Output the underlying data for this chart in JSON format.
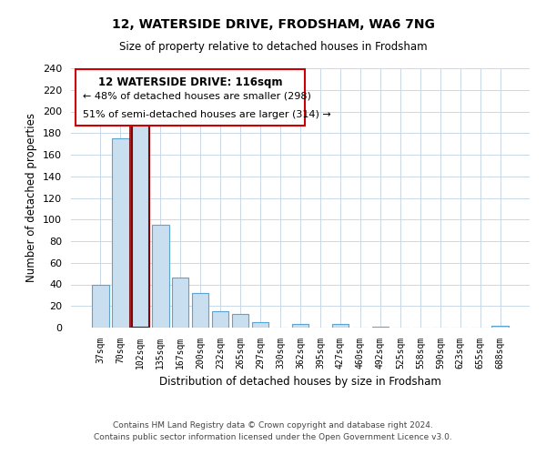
{
  "title": "12, WATERSIDE DRIVE, FRODSHAM, WA6 7NG",
  "subtitle": "Size of property relative to detached houses in Frodsham",
  "xlabel": "Distribution of detached houses by size in Frodsham",
  "ylabel": "Number of detached properties",
  "bin_labels": [
    "37sqm",
    "70sqm",
    "102sqm",
    "135sqm",
    "167sqm",
    "200sqm",
    "232sqm",
    "265sqm",
    "297sqm",
    "330sqm",
    "362sqm",
    "395sqm",
    "427sqm",
    "460sqm",
    "492sqm",
    "525sqm",
    "558sqm",
    "590sqm",
    "623sqm",
    "655sqm",
    "688sqm"
  ],
  "bar_values": [
    40,
    175,
    191,
    95,
    46,
    32,
    15,
    13,
    5,
    0,
    3,
    0,
    3,
    0,
    1,
    0,
    0,
    0,
    0,
    0,
    2
  ],
  "bar_color": "#c9dff0",
  "bar_edge_color": "#5ba3d0",
  "highlight_bar_index": 2,
  "highlight_edge_color": "#8b0000",
  "vline_color": "#8b0000",
  "ylim": [
    0,
    240
  ],
  "yticks": [
    0,
    20,
    40,
    60,
    80,
    100,
    120,
    140,
    160,
    180,
    200,
    220,
    240
  ],
  "annotation_title": "12 WATERSIDE DRIVE: 116sqm",
  "annotation_line1": "← 48% of detached houses are smaller (298)",
  "annotation_line2": "51% of semi-detached houses are larger (314) →",
  "footer_line1": "Contains HM Land Registry data © Crown copyright and database right 2024.",
  "footer_line2": "Contains public sector information licensed under the Open Government Licence v3.0.",
  "background_color": "#ffffff",
  "grid_color": "#c8d8e8"
}
